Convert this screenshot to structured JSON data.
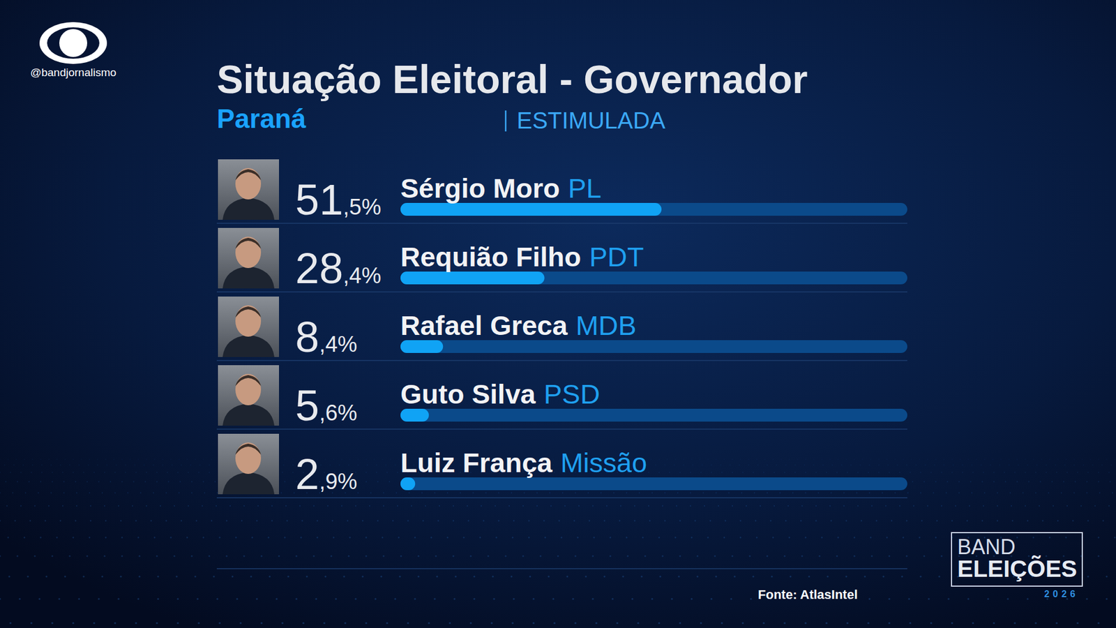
{
  "chart_data": {
    "type": "bar",
    "orientation": "horizontal",
    "title": "Situação Eleitoral - Governador",
    "subtitle": "Paraná",
    "poll_type": "ESTIMULADA",
    "brand": "@bandjornalismo",
    "categories": [
      "Sérgio Moro",
      "Requião Filho",
      "Rafael Greca",
      "Guto Silva",
      "Luiz França"
    ],
    "parties": [
      "PL",
      "PDT",
      "MDB",
      "PSD",
      "Missão"
    ],
    "values": [
      51.5,
      28.4,
      8.4,
      5.6,
      2.9
    ],
    "value_labels": [
      "51,5%",
      "28,4%",
      "8,4%",
      "5,6%",
      "2,9%"
    ],
    "data_labels": true,
    "tick_labels": false,
    "color": "#10a3f5",
    "xlim": [
      0,
      100
    ],
    "source": "Fonte: AtlasIntel",
    "logo": [
      "BAND",
      "ELEIÇÕES",
      "2026"
    ]
  }
}
